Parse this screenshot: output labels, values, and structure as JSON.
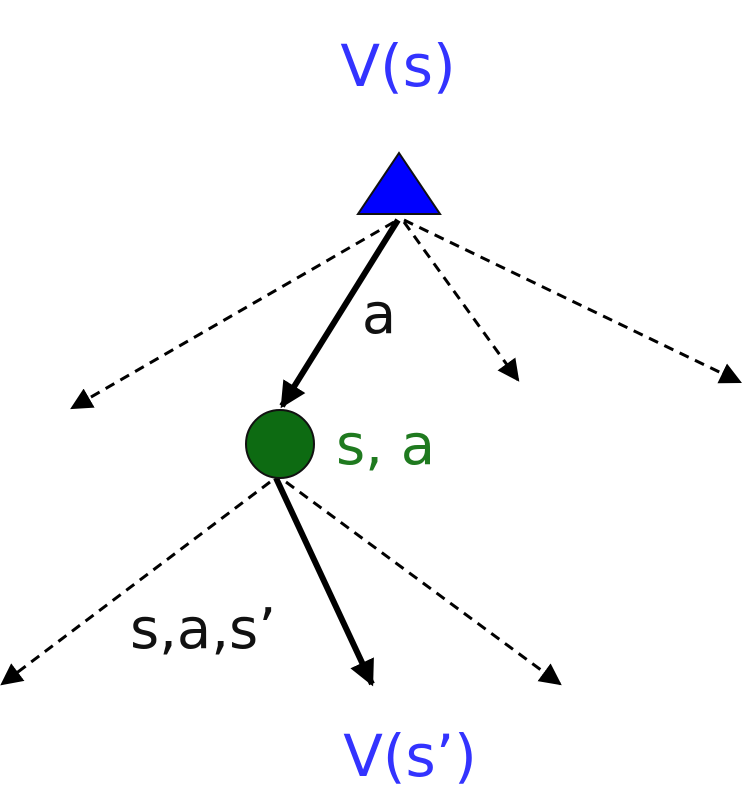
{
  "labels": {
    "root_value": "V(s)",
    "action": "a",
    "q_state": "s, a",
    "transition": "s,a,s’",
    "next_value": "V(s’)"
  },
  "colors": {
    "root_node": "#0000ff",
    "root_label": "#3333ff",
    "q_node": "#0d6b12",
    "q_label": "#1f7a1f",
    "edge": "#000000",
    "text": "#111111"
  },
  "shapes": {
    "root": "triangle",
    "q_state": "circle"
  }
}
